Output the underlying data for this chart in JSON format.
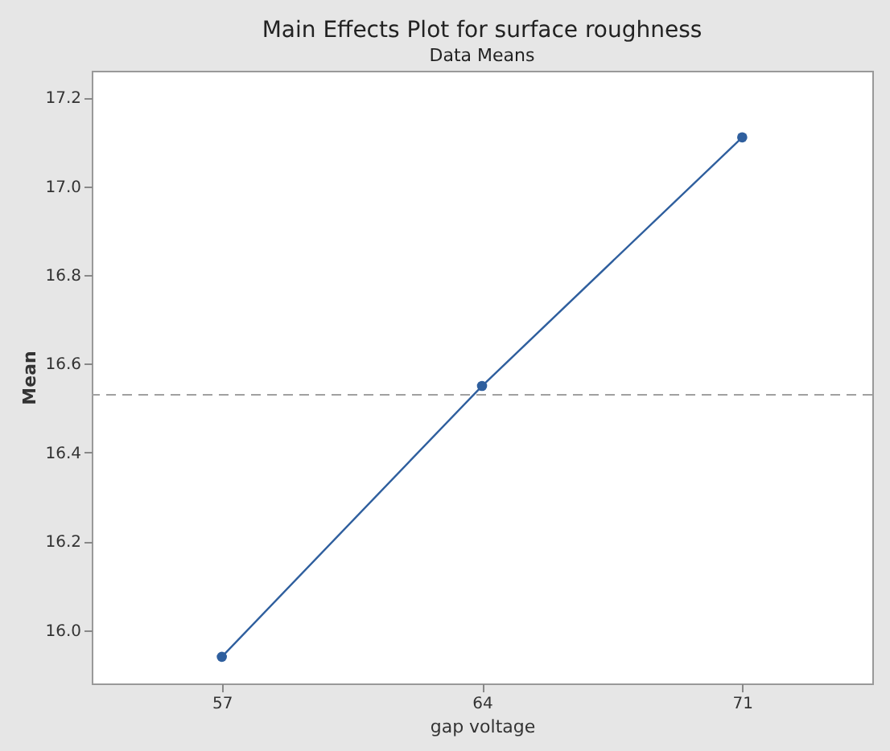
{
  "chart_data": {
    "type": "line",
    "title": "Main Effects Plot for surface roughness",
    "subtitle": "Data Means",
    "xlabel": "gap voltage",
    "ylabel": "Mean",
    "x": [
      57,
      64,
      71
    ],
    "series": [
      {
        "color": "#2f5f9e",
        "values": [
          15.94,
          16.55,
          17.11
        ]
      }
    ],
    "xlim": [
      53.5,
      74.5
    ],
    "xticks": [
      57,
      64,
      71
    ],
    "ylim": [
      15.88,
      17.26
    ],
    "yticks": [
      {
        "value": 16.0,
        "label": "16.0"
      },
      {
        "value": 16.2,
        "label": "16.2"
      },
      {
        "value": 16.4,
        "label": "16.4"
      },
      {
        "value": 16.6,
        "label": "16.6"
      },
      {
        "value": 16.8,
        "label": "16.8"
      },
      {
        "value": 17.0,
        "label": "17.0"
      },
      {
        "value": 17.2,
        "label": "17.2"
      }
    ],
    "ref_lines": [
      {
        "axis": "y",
        "value": 16.53,
        "color": "#a0a0a0",
        "line_style": "dashed"
      }
    ],
    "marker": "circle",
    "line_style": "solid",
    "grid": false
  }
}
